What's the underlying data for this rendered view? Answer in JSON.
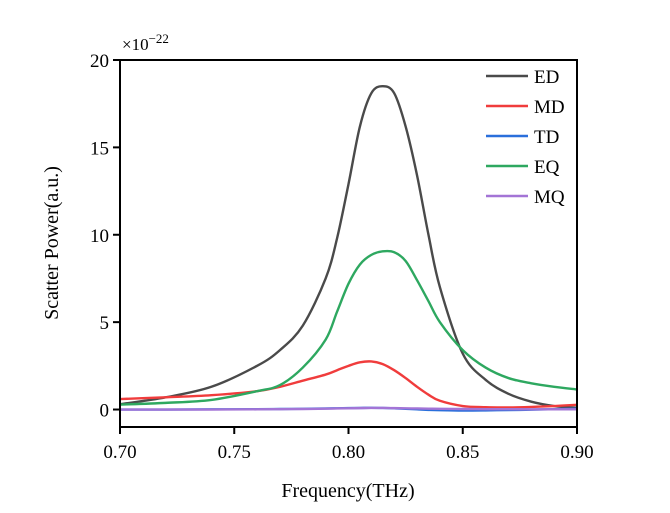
{
  "chart_data": {
    "type": "line",
    "title": "",
    "xlabel": "Frequency(THz)",
    "ylabel": "Scatter Power(a.u.)",
    "y_multiplier": "×10",
    "y_multiplier_exponent": "−22",
    "xlim": [
      0.7,
      0.9
    ],
    "ylim": [
      -1,
      20
    ],
    "xticks": [
      0.7,
      0.75,
      0.8,
      0.85,
      0.9
    ],
    "xtick_labels": [
      "0.70",
      "0.75",
      "0.80",
      "0.85",
      "0.90"
    ],
    "yticks": [
      0,
      5,
      10,
      15,
      20
    ],
    "ytick_labels": [
      "0",
      "5",
      "10",
      "15",
      "20"
    ],
    "grid": false,
    "legend_position": "top-right",
    "x": [
      0.7,
      0.72,
      0.74,
      0.76,
      0.77,
      0.78,
      0.79,
      0.795,
      0.8,
      0.805,
      0.81,
      0.815,
      0.82,
      0.825,
      0.83,
      0.835,
      0.84,
      0.85,
      0.86,
      0.87,
      0.88,
      0.89,
      0.9
    ],
    "series": [
      {
        "name": "ED",
        "color": "#4a4a4a",
        "values": [
          0.3,
          0.7,
          1.3,
          2.5,
          3.4,
          4.8,
          7.5,
          9.8,
          12.9,
          16.2,
          18.1,
          18.5,
          18.1,
          16.2,
          13.4,
          10.0,
          7.0,
          3.2,
          1.7,
          0.9,
          0.45,
          0.2,
          0.1
        ]
      },
      {
        "name": "MD",
        "color": "#f03c3c",
        "values": [
          0.6,
          0.7,
          0.82,
          1.05,
          1.3,
          1.65,
          2.0,
          2.25,
          2.5,
          2.7,
          2.75,
          2.6,
          2.25,
          1.8,
          1.3,
          0.85,
          0.5,
          0.2,
          0.13,
          0.12,
          0.15,
          0.2,
          0.27
        ]
      },
      {
        "name": "TD",
        "color": "#2a6fdb",
        "values": [
          0,
          0,
          0.01,
          0.02,
          0.03,
          0.04,
          0.06,
          0.07,
          0.08,
          0.09,
          0.1,
          0.09,
          0.07,
          0.04,
          0.01,
          -0.02,
          -0.04,
          -0.06,
          -0.05,
          -0.03,
          -0.01,
          0.02,
          0.05
        ]
      },
      {
        "name": "EQ",
        "color": "#2ea860",
        "values": [
          0.28,
          0.38,
          0.55,
          1.05,
          1.4,
          2.4,
          4.0,
          5.6,
          7.2,
          8.3,
          8.85,
          9.05,
          9.0,
          8.5,
          7.4,
          6.2,
          5.0,
          3.4,
          2.4,
          1.8,
          1.5,
          1.3,
          1.15
        ]
      },
      {
        "name": "MQ",
        "color": "#a374d6",
        "values": [
          0,
          0,
          0,
          0.01,
          0.02,
          0.03,
          0.05,
          0.06,
          0.07,
          0.08,
          0.09,
          0.09,
          0.08,
          0.07,
          0.06,
          0.05,
          0.04,
          0.03,
          0.02,
          0.02,
          0.01,
          0.01,
          0.01
        ]
      }
    ]
  }
}
